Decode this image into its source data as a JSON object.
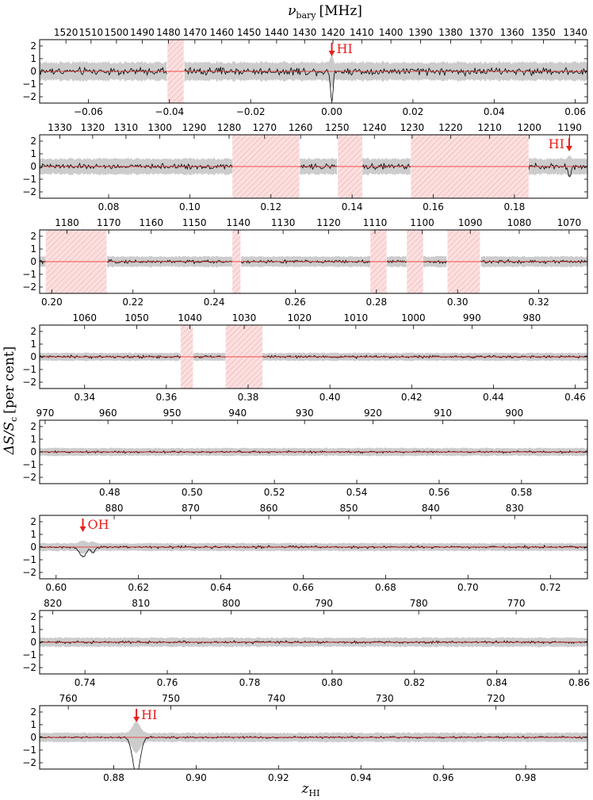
{
  "figure": {
    "top_axis_label": "ν",
    "top_axis_sub": "bary",
    "top_axis_unit": "[MHz]",
    "y_axis_label": "ΔS/S",
    "y_axis_sub": "c",
    "y_axis_unit": "[per cent]",
    "bottom_axis_label": "z",
    "bottom_axis_sub": "HI"
  },
  "colors": {
    "data_line": "#000000",
    "uncertainty_band": "#cccccc",
    "model_line": "#e8201e",
    "flagged_region": "#f8c4c4",
    "annotation": "#e8201e"
  },
  "chart_data": [
    {
      "type": "line",
      "panel": 1,
      "xlim": [
        -0.072,
        0.063
      ],
      "ylim": [
        -2.5,
        2.5
      ],
      "yticks": [
        -2,
        -1,
        0,
        1,
        2
      ],
      "xticks": [
        -0.06,
        -0.04,
        -0.02,
        0.0,
        0.02,
        0.04,
        0.06
      ],
      "xticklabels": [
        "−0.06",
        "−0.04",
        "−0.02",
        "0.00",
        "0.02",
        "0.04",
        "0.06"
      ],
      "freq_ticks": [
        1520,
        1510,
        1500,
        1490,
        1480,
        1470,
        1460,
        1450,
        1440,
        1430,
        1420,
        1410,
        1400,
        1390,
        1380,
        1370,
        1360,
        1350,
        1340
      ],
      "flagged": [
        [
          -0.0405,
          -0.0365
        ]
      ],
      "annotations": [
        {
          "text": "HI",
          "x": 0.0
        }
      ],
      "features": [
        {
          "x": 0.0,
          "depth": -2.5,
          "width": 0.0004
        }
      ],
      "noise": 0.18,
      "band": 0.7
    },
    {
      "type": "line",
      "panel": 2,
      "xlim": [
        0.063,
        0.198
      ],
      "ylim": [
        -2.5,
        2.5
      ],
      "yticks": [
        -2,
        -1,
        0,
        1,
        2
      ],
      "xticks": [
        0.08,
        0.1,
        0.12,
        0.14,
        0.16,
        0.18
      ],
      "xticklabels": [
        "0.08",
        "0.10",
        "0.12",
        "0.14",
        "0.16",
        "0.18"
      ],
      "freq_ticks": [
        1330,
        1320,
        1310,
        1300,
        1290,
        1280,
        1270,
        1260,
        1250,
        1240,
        1230,
        1220,
        1210,
        1200,
        1190
      ],
      "flagged": [
        [
          0.1105,
          0.127
        ],
        [
          0.1365,
          0.1425
        ],
        [
          0.1545,
          0.1835
        ]
      ],
      "annotations": [
        {
          "text": "HI",
          "x": 0.1935
        }
      ],
      "features": [
        {
          "x": 0.1935,
          "depth": -0.9,
          "width": 0.0005
        }
      ],
      "noise": 0.12,
      "band": 0.6
    },
    {
      "type": "line",
      "panel": 3,
      "xlim": [
        0.197,
        0.332
      ],
      "ylim": [
        -2.5,
        2.5
      ],
      "yticks": [
        -2,
        -1,
        0,
        1,
        2
      ],
      "xticks": [
        0.2,
        0.22,
        0.24,
        0.26,
        0.28,
        0.3,
        0.32
      ],
      "xticklabels": [
        "0.20",
        "0.22",
        "0.24",
        "0.26",
        "0.28",
        "0.30",
        "0.32"
      ],
      "freq_ticks": [
        1180,
        1170,
        1160,
        1150,
        1140,
        1130,
        1120,
        1110,
        1100,
        1090,
        1080,
        1070
      ],
      "flagged": [
        [
          0.1985,
          0.2135
        ],
        [
          0.2445,
          0.2465
        ],
        [
          0.2785,
          0.2825
        ],
        [
          0.2875,
          0.2915
        ],
        [
          0.2975,
          0.3055
        ]
      ],
      "annotations": [],
      "features": [],
      "noise": 0.08,
      "band": 0.4
    },
    {
      "type": "line",
      "panel": 4,
      "xlim": [
        0.329,
        0.463
      ],
      "ylim": [
        -2.5,
        2.5
      ],
      "yticks": [
        -2,
        -1,
        0,
        1,
        2
      ],
      "xticks": [
        0.34,
        0.36,
        0.38,
        0.4,
        0.42,
        0.44,
        0.46
      ],
      "xticklabels": [
        "0.34",
        "0.36",
        "0.38",
        "0.40",
        "0.42",
        "0.44",
        "0.46"
      ],
      "freq_ticks": [
        1060,
        1050,
        1040,
        1030,
        1020,
        1010,
        1000,
        990,
        980
      ],
      "flagged": [
        [
          0.3635,
          0.3665
        ],
        [
          0.3745,
          0.3835
        ]
      ],
      "annotations": [],
      "features": [],
      "noise": 0.06,
      "band": 0.3
    },
    {
      "type": "line",
      "panel": 5,
      "xlim": [
        0.463,
        0.596
      ],
      "ylim": [
        -2.5,
        2.5
      ],
      "yticks": [
        -2,
        -1,
        0,
        1,
        2
      ],
      "xticks": [
        0.48,
        0.5,
        0.52,
        0.54,
        0.56,
        0.58
      ],
      "xticklabels": [
        "0.48",
        "0.50",
        "0.52",
        "0.54",
        "0.56",
        "0.58"
      ],
      "freq_ticks": [
        970,
        960,
        950,
        940,
        930,
        920,
        910,
        900
      ],
      "flagged": [],
      "annotations": [],
      "features": [],
      "noise": 0.05,
      "band": 0.3
    },
    {
      "type": "line",
      "panel": 6,
      "xlim": [
        0.596,
        0.729
      ],
      "ylim": [
        -2.5,
        2.5
      ],
      "yticks": [
        -2,
        -1,
        0,
        1,
        2
      ],
      "xticks": [
        0.6,
        0.62,
        0.64,
        0.66,
        0.68,
        0.7,
        0.72
      ],
      "xticklabels": [
        "0.60",
        "0.62",
        "0.64",
        "0.66",
        "0.68",
        "0.70",
        "0.72"
      ],
      "freq_ticks": [
        880,
        870,
        860,
        850,
        840,
        830
      ],
      "flagged": [],
      "annotations": [
        {
          "text": "OH",
          "x": 0.6065
        }
      ],
      "features": [
        {
          "x": 0.6065,
          "depth": -0.7,
          "width": 0.0012
        },
        {
          "x": 0.609,
          "depth": -0.4,
          "width": 0.0008
        }
      ],
      "noise": 0.06,
      "band": 0.3
    },
    {
      "type": "line",
      "panel": 7,
      "xlim": [
        0.729,
        0.862
      ],
      "ylim": [
        -2.5,
        2.5
      ],
      "yticks": [
        -2,
        -1,
        0,
        1,
        2
      ],
      "xticks": [
        0.74,
        0.76,
        0.78,
        0.8,
        0.82,
        0.84,
        0.86
      ],
      "xticklabels": [
        "0.74",
        "0.76",
        "0.78",
        "0.80",
        "0.82",
        "0.84",
        "0.86"
      ],
      "freq_ticks": [
        820,
        810,
        800,
        790,
        780,
        770
      ],
      "flagged": [],
      "annotations": [],
      "features": [],
      "noise": 0.06,
      "band": 0.35
    },
    {
      "type": "line",
      "panel": 8,
      "xlim": [
        0.862,
        0.995
      ],
      "ylim": [
        -2.5,
        2.5
      ],
      "yticks": [
        -2,
        -1,
        0,
        1,
        2
      ],
      "xticks": [
        0.88,
        0.9,
        0.92,
        0.94,
        0.96,
        0.98
      ],
      "xticklabels": [
        "0.88",
        "0.90",
        "0.92",
        "0.94",
        "0.96",
        "0.98"
      ],
      "freq_ticks": [
        760,
        750,
        740,
        730,
        720
      ],
      "flagged": [],
      "annotations": [
        {
          "text": "HI",
          "x": 0.8855
        }
      ],
      "features": [
        {
          "x": 0.8855,
          "depth": -2.9,
          "width": 0.0013
        }
      ],
      "noise": 0.05,
      "band": 0.35
    }
  ]
}
